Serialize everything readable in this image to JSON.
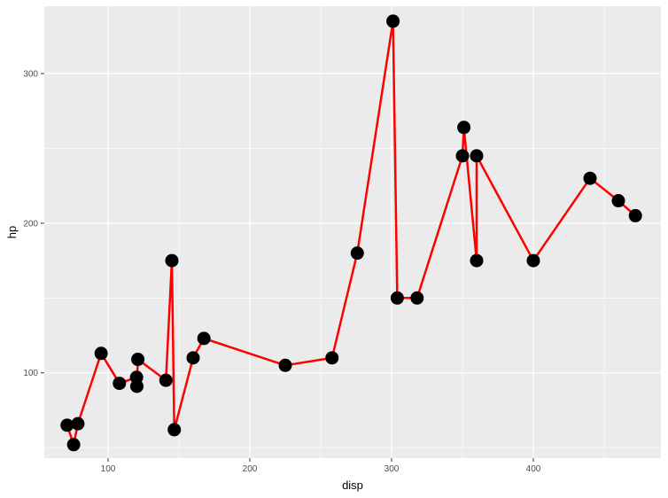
{
  "chart_data": {
    "type": "line",
    "xlabel": "disp",
    "ylabel": "hp",
    "xlim": [
      55,
      490
    ],
    "ylim": [
      43,
      345
    ],
    "x_ticks": [
      100,
      200,
      300,
      400
    ],
    "y_ticks": [
      100,
      200,
      300
    ],
    "grid": true,
    "legend": "none",
    "colors": {
      "panel": "#EBEBEB",
      "grid": "#FFFFFF",
      "line": "#FF0000",
      "point": "#000000"
    },
    "series": [
      {
        "points": [
          {
            "x": 71.1,
            "y": 65
          },
          {
            "x": 75.7,
            "y": 52
          },
          {
            "x": 78.7,
            "y": 66
          },
          {
            "x": 95.1,
            "y": 113
          },
          {
            "x": 108.0,
            "y": 93
          },
          {
            "x": 120.1,
            "y": 97
          },
          {
            "x": 120.3,
            "y": 91
          },
          {
            "x": 121.0,
            "y": 109
          },
          {
            "x": 140.8,
            "y": 95
          },
          {
            "x": 145.0,
            "y": 175
          },
          {
            "x": 146.7,
            "y": 62
          },
          {
            "x": 160.0,
            "y": 110
          },
          {
            "x": 167.6,
            "y": 123
          },
          {
            "x": 225.0,
            "y": 105
          },
          {
            "x": 258.0,
            "y": 110
          },
          {
            "x": 275.8,
            "y": 180
          },
          {
            "x": 301.0,
            "y": 335
          },
          {
            "x": 304.0,
            "y": 150
          },
          {
            "x": 318.0,
            "y": 150
          },
          {
            "x": 350.0,
            "y": 245
          },
          {
            "x": 351.0,
            "y": 264
          },
          {
            "x": 360.0,
            "y": 175
          },
          {
            "x": 360.0,
            "y": 245
          },
          {
            "x": 400.0,
            "y": 175
          },
          {
            "x": 440.0,
            "y": 230
          },
          {
            "x": 460.0,
            "y": 215
          },
          {
            "x": 472.0,
            "y": 205
          }
        ]
      }
    ]
  }
}
